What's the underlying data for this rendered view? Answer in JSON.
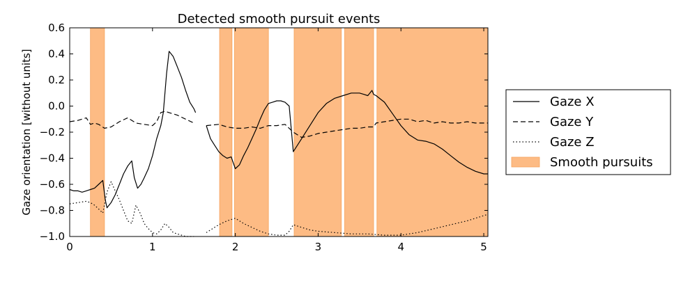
{
  "chart_data": {
    "type": "line",
    "title": "Detected smooth pursuit events",
    "xlabel": "",
    "ylabel": "Gaze orientation [without units]",
    "xlim": [
      0,
      5.05
    ],
    "ylim": [
      -1.0,
      0.6
    ],
    "xticks": [
      0,
      1,
      2,
      3,
      4,
      5
    ],
    "yticks": [
      -1.0,
      -0.8,
      -0.6,
      -0.4,
      -0.2,
      0.0,
      0.2,
      0.4,
      0.6
    ],
    "xtick_labels": [
      "0",
      "1",
      "2",
      "3",
      "4",
      "5"
    ],
    "ytick_labels": [
      "−1.0",
      "−0.8",
      "−0.6",
      "−0.4",
      "−0.2",
      "0.0",
      "0.2",
      "0.4",
      "0.6"
    ],
    "grid": false,
    "legend_position": "outside-right",
    "colors": {
      "pursuit_fill": "#fdbb84",
      "pursuit_edge": "#f5a35c",
      "line": "#000000"
    },
    "shaded_regions": {
      "name": "Smooth pursuits",
      "intervals": [
        [
          0.25,
          0.42
        ],
        [
          1.81,
          1.96
        ],
        [
          1.99,
          2.4
        ],
        [
          2.71,
          3.28
        ],
        [
          3.32,
          3.67
        ],
        [
          3.71,
          5.05
        ]
      ]
    },
    "series": [
      {
        "name": "Gaze X",
        "style": "solid",
        "x": [
          0,
          0.05,
          0.1,
          0.15,
          0.2,
          0.25,
          0.3,
          0.35,
          0.4,
          0.43,
          0.45,
          0.5,
          0.55,
          0.6,
          0.65,
          0.7,
          0.75,
          0.78,
          0.82,
          0.86,
          0.9,
          0.95,
          1.0,
          1.05,
          1.1,
          1.13,
          1.17,
          1.2,
          1.25,
          1.3,
          1.35,
          1.4,
          1.45,
          1.5,
          1.52,
          null,
          1.65,
          1.7,
          1.75,
          1.8,
          1.85,
          1.9,
          1.95,
          2.0,
          2.05,
          2.1,
          2.15,
          2.2,
          2.25,
          2.3,
          2.35,
          2.4,
          2.45,
          2.5,
          2.55,
          2.6,
          2.65,
          2.7,
          2.75,
          2.8,
          2.9,
          3.0,
          3.1,
          3.2,
          3.3,
          3.4,
          3.5,
          3.55,
          3.6,
          3.65,
          3.67,
          3.7,
          3.8,
          3.9,
          4.0,
          4.1,
          4.2,
          4.3,
          4.4,
          4.5,
          4.6,
          4.7,
          4.8,
          4.9,
          5.0,
          5.05
        ],
        "y": [
          -0.64,
          -0.65,
          -0.65,
          -0.66,
          -0.65,
          -0.64,
          -0.63,
          -0.6,
          -0.57,
          -0.72,
          -0.78,
          -0.74,
          -0.68,
          -0.6,
          -0.52,
          -0.46,
          -0.42,
          -0.55,
          -0.63,
          -0.6,
          -0.55,
          -0.48,
          -0.38,
          -0.25,
          -0.15,
          -0.05,
          0.25,
          0.42,
          0.38,
          0.3,
          0.22,
          0.12,
          0.03,
          -0.02,
          -0.05,
          null,
          -0.15,
          -0.25,
          -0.3,
          -0.35,
          -0.38,
          -0.4,
          -0.39,
          -0.48,
          -0.45,
          -0.38,
          -0.32,
          -0.25,
          -0.18,
          -0.1,
          -0.03,
          0.02,
          0.03,
          0.04,
          0.04,
          0.03,
          0.0,
          -0.35,
          -0.3,
          -0.25,
          -0.15,
          -0.05,
          0.02,
          0.06,
          0.08,
          0.1,
          0.1,
          0.09,
          0.08,
          0.12,
          0.09,
          0.08,
          0.03,
          -0.06,
          -0.15,
          -0.22,
          -0.26,
          -0.27,
          -0.29,
          -0.33,
          -0.38,
          -0.43,
          -0.47,
          -0.5,
          -0.52,
          -0.52
        ]
      },
      {
        "name": "Gaze Y",
        "style": "dashed",
        "x": [
          0,
          0.1,
          0.2,
          0.25,
          0.3,
          0.35,
          0.42,
          0.5,
          0.6,
          0.7,
          0.8,
          0.9,
          1.0,
          1.05,
          1.1,
          1.15,
          1.2,
          1.3,
          1.4,
          1.5,
          null,
          1.65,
          1.8,
          1.9,
          2.0,
          2.1,
          2.2,
          2.3,
          2.4,
          2.5,
          2.6,
          2.7,
          2.8,
          2.9,
          3.0,
          3.1,
          3.2,
          3.3,
          3.4,
          3.5,
          3.6,
          3.67,
          3.7,
          3.8,
          3.9,
          4.0,
          4.1,
          4.2,
          4.3,
          4.4,
          4.5,
          4.6,
          4.7,
          4.8,
          4.9,
          5.05
        ],
        "y": [
          -0.12,
          -0.11,
          -0.09,
          -0.14,
          -0.13,
          -0.14,
          -0.17,
          -0.16,
          -0.12,
          -0.09,
          -0.13,
          -0.14,
          -0.15,
          -0.12,
          -0.05,
          -0.04,
          -0.05,
          -0.07,
          -0.1,
          -0.13,
          null,
          -0.15,
          -0.14,
          -0.16,
          -0.17,
          -0.17,
          -0.16,
          -0.17,
          -0.15,
          -0.15,
          -0.14,
          -0.2,
          -0.24,
          -0.23,
          -0.21,
          -0.2,
          -0.19,
          -0.18,
          -0.17,
          -0.17,
          -0.16,
          -0.16,
          -0.13,
          -0.12,
          -0.11,
          -0.1,
          -0.1,
          -0.12,
          -0.11,
          -0.13,
          -0.12,
          -0.13,
          -0.13,
          -0.12,
          -0.13,
          -0.13
        ]
      },
      {
        "name": "Gaze Z",
        "style": "dotted",
        "x": [
          0,
          0.1,
          0.2,
          0.25,
          0.3,
          0.35,
          0.4,
          0.45,
          0.5,
          0.55,
          0.6,
          0.65,
          0.7,
          0.75,
          0.8,
          0.85,
          0.9,
          0.95,
          1.0,
          1.05,
          1.1,
          1.15,
          1.2,
          1.25,
          1.3,
          1.35,
          1.4,
          1.45,
          1.5,
          null,
          1.65,
          1.7,
          1.8,
          1.9,
          2.0,
          2.1,
          2.2,
          2.3,
          2.4,
          2.5,
          2.6,
          2.65,
          2.7,
          2.8,
          2.9,
          3.0,
          3.2,
          3.4,
          3.6,
          3.8,
          4.0,
          4.2,
          4.4,
          4.6,
          4.8,
          5.0,
          5.05
        ],
        "y": [
          -0.75,
          -0.74,
          -0.73,
          -0.74,
          -0.76,
          -0.79,
          -0.82,
          -0.66,
          -0.58,
          -0.65,
          -0.72,
          -0.8,
          -0.88,
          -0.9,
          -0.76,
          -0.82,
          -0.9,
          -0.94,
          -0.97,
          -0.98,
          -0.95,
          -0.9,
          -0.93,
          -0.97,
          -0.98,
          -0.99,
          -1.0,
          -1.0,
          -1.0,
          null,
          -0.97,
          -0.95,
          -0.91,
          -0.88,
          -0.86,
          -0.9,
          -0.93,
          -0.96,
          -0.98,
          -0.99,
          -0.99,
          -0.96,
          -0.91,
          -0.93,
          -0.95,
          -0.96,
          -0.97,
          -0.98,
          -0.98,
          -0.99,
          -0.99,
          -0.97,
          -0.94,
          -0.91,
          -0.88,
          -0.84,
          -0.83
        ]
      }
    ],
    "legend": {
      "entries": [
        {
          "label": "Gaze X",
          "kind": "solid"
        },
        {
          "label": "Gaze Y",
          "kind": "dashed"
        },
        {
          "label": "Gaze Z",
          "kind": "dotted"
        },
        {
          "label": "Smooth pursuits",
          "kind": "patch"
        }
      ]
    }
  }
}
